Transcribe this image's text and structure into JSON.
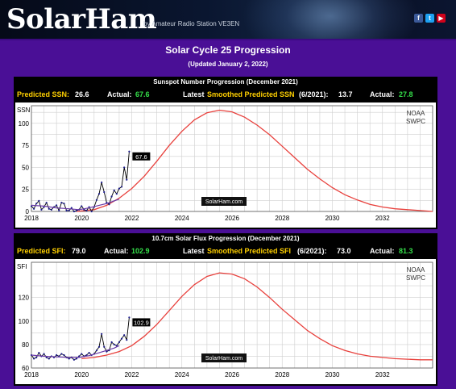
{
  "banner": {
    "logo": "SolarHam",
    "tagline": "by Amateur Radio Station VE3EN",
    "social": [
      {
        "name": "facebook",
        "glyph": "f",
        "color": "#3b5998"
      },
      {
        "name": "twitter",
        "glyph": "t",
        "color": "#1da1f2"
      },
      {
        "name": "youtube",
        "glyph": "▶",
        "color": "#d0021b"
      }
    ]
  },
  "page": {
    "title": "Solar Cycle 25 Progression",
    "updated": "(Updated January 2, 2022)"
  },
  "ssn_panel": {
    "header": "Sunspot Number Progression   (December 2021)",
    "predicted_label": "Predicted SSN:",
    "predicted_value": "26.6",
    "actual_label": "Actual:",
    "actual_value": "67.6",
    "latest_prefix": "Latest",
    "latest_label": "Smoothed Predicted SSN",
    "latest_month": "(6/2021):",
    "latest_value": "13.7",
    "actual2_label": "Actual:",
    "actual2_value": "27.8"
  },
  "sfi_panel": {
    "header": "10.7cm Solar Flux Progression   (December 2021)",
    "predicted_label": "Predicted SFI:",
    "predicted_value": "79.0",
    "actual_label": "Actual:",
    "actual_value": "102.9",
    "latest_prefix": "Latest",
    "latest_label": "Smoothed Predicted SFI",
    "latest_month": "(6/2021):",
    "latest_value": "73.0",
    "actual2_label": "Actual:",
    "actual2_value": "81.3"
  },
  "colors": {
    "background": "#4a0f96",
    "predicted_curve": "#e8403c",
    "monthly": "#000000",
    "smoothed": "#6a3aa8",
    "highlight_yellow": "#ffd000",
    "highlight_green": "#35e04a"
  },
  "chart_data": [
    {
      "type": "line",
      "ylabel": "SSN",
      "xlim": [
        2018,
        2034
      ],
      "ylim": [
        0,
        120
      ],
      "x_ticks": [
        2018,
        2020,
        2022,
        2024,
        2026,
        2028,
        2030,
        2032
      ],
      "y_ticks": [
        0,
        25,
        50,
        75,
        100
      ],
      "grid": true,
      "watermark": "SolarHam.com",
      "source_label": [
        "NOAA",
        "SWPC"
      ],
      "latest_label": "67.6",
      "series": [
        {
          "role": "predicted",
          "x": [
            2019.8,
            2020.5,
            2021.0,
            2021.5,
            2022.0,
            2022.5,
            2023.0,
            2023.5,
            2024.0,
            2024.5,
            2025.0,
            2025.5,
            2026.0,
            2026.5,
            2027.0,
            2027.5,
            2028.0,
            2028.5,
            2029.0,
            2029.5,
            2030.0,
            2030.5,
            2031.0,
            2031.5,
            2032.0,
            2032.5,
            2033.0,
            2033.5,
            2034.0
          ],
          "y": [
            0,
            2,
            7,
            15,
            26,
            40,
            57,
            75,
            91,
            104,
            112,
            115,
            113,
            107,
            98,
            87,
            74,
            61,
            48,
            37,
            27,
            19,
            13,
            8,
            5,
            3,
            2,
            1,
            0
          ]
        },
        {
          "role": "monthly",
          "x": [
            2018.0,
            2018.1,
            2018.2,
            2018.3,
            2018.4,
            2018.5,
            2018.6,
            2018.7,
            2018.8,
            2018.9,
            2019.0,
            2019.1,
            2019.2,
            2019.3,
            2019.4,
            2019.5,
            2019.6,
            2019.7,
            2019.8,
            2019.9,
            2020.0,
            2020.1,
            2020.2,
            2020.3,
            2020.4,
            2020.5,
            2020.6,
            2020.7,
            2020.8,
            2020.9,
            2021.0,
            2021.1,
            2021.2,
            2021.3,
            2021.4,
            2021.5,
            2021.6,
            2021.7,
            2021.8,
            2021.9
          ],
          "y": [
            6,
            3,
            9,
            12,
            2,
            5,
            10,
            3,
            2,
            5,
            7,
            1,
            10,
            9,
            1,
            1,
            4,
            0,
            1,
            2,
            6,
            2,
            1,
            5,
            0,
            5,
            13,
            20,
            33,
            22,
            10,
            8,
            17,
            24,
            20,
            26,
            28,
            50,
            36,
            68
          ]
        },
        {
          "role": "smoothed",
          "x": [
            2018.0,
            2018.5,
            2019.0,
            2019.5,
            2019.9,
            2020.3,
            2020.7,
            2021.0,
            2021.3,
            2021.5
          ],
          "y": [
            7,
            6,
            4,
            3,
            2,
            4,
            7,
            9,
            12,
            14
          ]
        }
      ]
    },
    {
      "type": "line",
      "ylabel": "SFI",
      "xlim": [
        2018,
        2034
      ],
      "ylim": [
        60,
        150
      ],
      "x_ticks": [
        2018,
        2020,
        2022,
        2024,
        2026,
        2028,
        2030,
        2032
      ],
      "y_ticks": [
        60,
        80,
        100,
        120
      ],
      "grid": true,
      "watermark": "SolarHam.com",
      "source_label": [
        "NOAA",
        "SWPC"
      ],
      "latest_label": "102.9",
      "series": [
        {
          "role": "predicted",
          "x": [
            2020.0,
            2020.5,
            2021.0,
            2021.5,
            2022.0,
            2022.5,
            2023.0,
            2023.5,
            2024.0,
            2024.5,
            2025.0,
            2025.5,
            2026.0,
            2026.5,
            2027.0,
            2027.5,
            2028.0,
            2028.5,
            2029.0,
            2029.5,
            2030.0,
            2030.5,
            2031.0,
            2031.5,
            2032.0,
            2032.5,
            2033.0,
            2033.5,
            2034.0
          ],
          "y": [
            68,
            69,
            71,
            74,
            79,
            87,
            97,
            109,
            121,
            131,
            138,
            141,
            140,
            136,
            129,
            120,
            110,
            101,
            92,
            85,
            79,
            75,
            72,
            70,
            69,
            68,
            67.5,
            67,
            67
          ]
        },
        {
          "role": "monthly",
          "x": [
            2018.0,
            2018.1,
            2018.2,
            2018.3,
            2018.4,
            2018.5,
            2018.6,
            2018.7,
            2018.8,
            2018.9,
            2019.0,
            2019.1,
            2019.2,
            2019.3,
            2019.4,
            2019.5,
            2019.6,
            2019.7,
            2019.8,
            2019.9,
            2020.0,
            2020.1,
            2020.2,
            2020.3,
            2020.4,
            2020.5,
            2020.6,
            2020.7,
            2020.8,
            2020.9,
            2021.0,
            2021.1,
            2021.2,
            2021.3,
            2021.4,
            2021.5,
            2021.6,
            2021.7,
            2021.8,
            2021.9
          ],
          "y": [
            71,
            68,
            69,
            73,
            70,
            72,
            69,
            68,
            70,
            69,
            71,
            70,
            72,
            71,
            69,
            68,
            69,
            67,
            68,
            70,
            72,
            70,
            71,
            73,
            71,
            72,
            75,
            78,
            89,
            78,
            74,
            75,
            82,
            80,
            79,
            82,
            85,
            88,
            84,
            103
          ]
        },
        {
          "role": "smoothed",
          "x": [
            2018.0,
            2018.5,
            2019.0,
            2019.5,
            2019.9,
            2020.3,
            2020.7,
            2021.0,
            2021.3,
            2021.5
          ],
          "y": [
            71,
            70,
            69.5,
            69,
            69,
            70.5,
            73,
            75,
            77,
            79
          ]
        }
      ]
    }
  ]
}
